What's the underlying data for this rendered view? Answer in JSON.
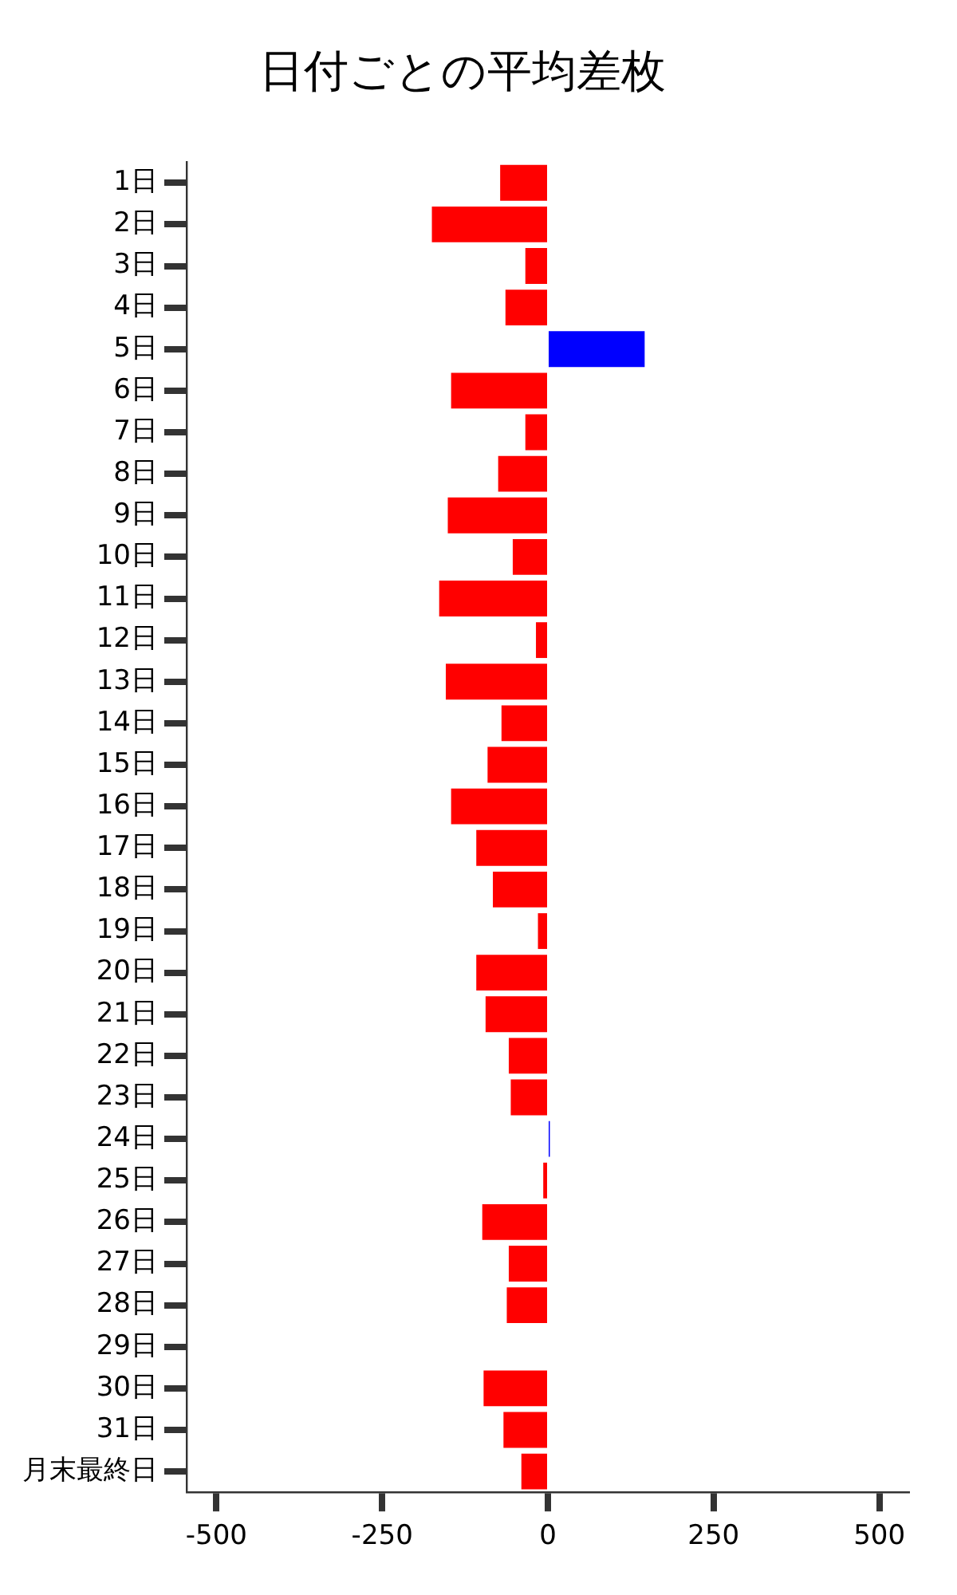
{
  "chart_data": {
    "type": "bar",
    "orientation": "horizontal",
    "title": "日付ごとの平均差枚",
    "categories": [
      "1日",
      "2日",
      "3日",
      "4日",
      "5日",
      "6日",
      "7日",
      "8日",
      "9日",
      "10日",
      "11日",
      "12日",
      "13日",
      "14日",
      "15日",
      "16日",
      "17日",
      "18日",
      "19日",
      "20日",
      "21日",
      "22日",
      "23日",
      "24日",
      "25日",
      "26日",
      "27日",
      "28日",
      "29日",
      "30日",
      "31日",
      "月末最終日"
    ],
    "values": [
      -72,
      -175,
      -34,
      -64,
      146,
      -146,
      -34,
      -75,
      -151,
      -53,
      -164,
      -18,
      -154,
      -70,
      -91,
      -146,
      -108,
      -83,
      -15,
      -108,
      -94,
      -59,
      -56,
      3,
      -7,
      -99,
      -59,
      -62,
      0,
      -97,
      -67,
      -40
    ],
    "colors": [
      "#ff0000",
      "#ff0000",
      "#ff0000",
      "#ff0000",
      "#0000ff",
      "#ff0000",
      "#ff0000",
      "#ff0000",
      "#ff0000",
      "#ff0000",
      "#ff0000",
      "#ff0000",
      "#ff0000",
      "#ff0000",
      "#ff0000",
      "#ff0000",
      "#ff0000",
      "#ff0000",
      "#ff0000",
      "#ff0000",
      "#ff0000",
      "#ff0000",
      "#ff0000",
      "#0000ff",
      "#ff0000",
      "#ff0000",
      "#ff0000",
      "#ff0000",
      "#ff0000",
      "#ff0000",
      "#ff0000",
      "#ff0000"
    ],
    "xlim": [
      -545,
      545
    ],
    "xticks": [
      -500,
      -250,
      0,
      250,
      500
    ],
    "grid": false,
    "legend": false
  }
}
